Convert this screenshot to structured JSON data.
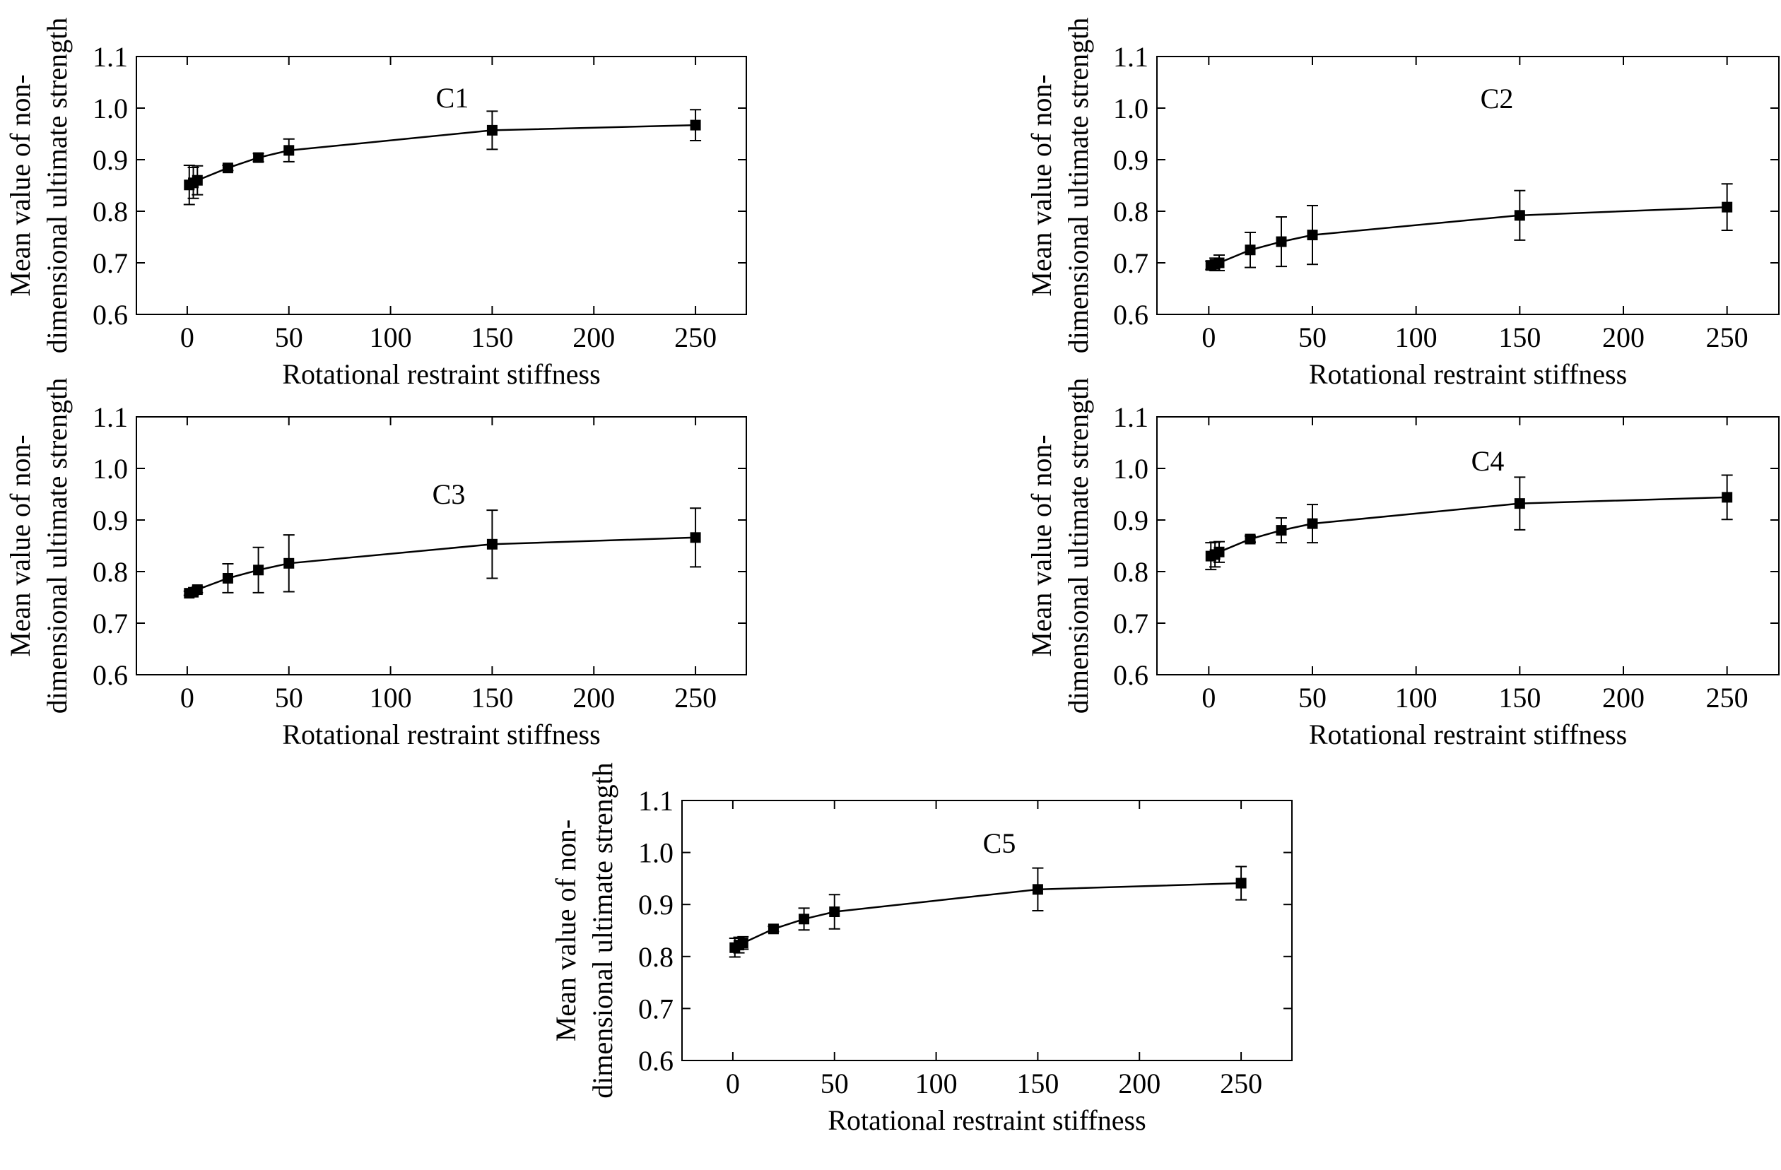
{
  "figure": {
    "axis_style": {
      "line_color": "#000000",
      "marker_color": "#000000",
      "background": "#ffffff"
    }
  },
  "chart_data": [
    {
      "type": "line",
      "annotation": "C1",
      "xlabel": "Rotational restraint stiffness",
      "ylabel_lines": [
        "Mean value of non-",
        "dimensional ultimate strength"
      ],
      "xlim": [
        -25,
        275
      ],
      "ylim": [
        0.6,
        1.1
      ],
      "xticks": [
        0,
        50,
        100,
        150,
        200,
        250
      ],
      "yticks": [
        0.6,
        0.7,
        0.8,
        0.9,
        1.0,
        1.1
      ],
      "grid": false,
      "series": [
        {
          "x": [
            1,
            3,
            5,
            20,
            35,
            50,
            150,
            250
          ],
          "y": [
            0.851,
            0.855,
            0.86,
            0.884,
            0.904,
            0.918,
            0.957,
            0.967
          ],
          "err": [
            0.038,
            0.03,
            0.028,
            0.005,
            0.008,
            0.022,
            0.037,
            0.03
          ]
        }
      ]
    },
    {
      "type": "line",
      "annotation": "C2",
      "xlabel": "Rotational restraint stiffness",
      "ylabel_lines": [
        "Mean value of non-",
        "dimensional ultimate strength"
      ],
      "xlim": [
        -25,
        275
      ],
      "ylim": [
        0.6,
        1.1
      ],
      "xticks": [
        0,
        50,
        100,
        150,
        200,
        250
      ],
      "yticks": [
        0.6,
        0.7,
        0.8,
        0.9,
        1.0,
        1.1
      ],
      "grid": false,
      "series": [
        {
          "x": [
            1,
            3,
            5,
            20,
            35,
            50,
            150,
            250
          ],
          "y": [
            0.695,
            0.697,
            0.7,
            0.725,
            0.741,
            0.754,
            0.792,
            0.808
          ],
          "err": [
            0.008,
            0.012,
            0.015,
            0.034,
            0.048,
            0.057,
            0.048,
            0.045
          ]
        }
      ]
    },
    {
      "type": "line",
      "annotation": "C3",
      "xlabel": "Rotational restraint stiffness",
      "ylabel_lines": [
        "Mean value of non-",
        "dimensional ultimate strength"
      ],
      "xlim": [
        -25,
        275
      ],
      "ylim": [
        0.6,
        1.1
      ],
      "xticks": [
        0,
        50,
        100,
        150,
        200,
        250
      ],
      "yticks": [
        0.6,
        0.7,
        0.8,
        0.9,
        1.0,
        1.1
      ],
      "grid": false,
      "series": [
        {
          "x": [
            1,
            3,
            5,
            20,
            35,
            50,
            150,
            250
          ],
          "y": [
            0.758,
            0.76,
            0.765,
            0.787,
            0.803,
            0.816,
            0.853,
            0.866
          ],
          "err": [
            0.004,
            0.005,
            0.006,
            0.028,
            0.044,
            0.055,
            0.066,
            0.057
          ]
        }
      ]
    },
    {
      "type": "line",
      "annotation": "C4",
      "xlabel": "Rotational restraint stiffness",
      "ylabel_lines": [
        "Mean value of non-",
        "dimensional ultimate strength"
      ],
      "xlim": [
        -25,
        275
      ],
      "ylim": [
        0.6,
        1.1
      ],
      "xticks": [
        0,
        50,
        100,
        150,
        200,
        250
      ],
      "yticks": [
        0.6,
        0.7,
        0.8,
        0.9,
        1.0,
        1.1
      ],
      "grid": false,
      "series": [
        {
          "x": [
            1,
            3,
            5,
            20,
            35,
            50,
            150,
            250
          ],
          "y": [
            0.83,
            0.833,
            0.838,
            0.863,
            0.88,
            0.893,
            0.932,
            0.944
          ],
          "err": [
            0.026,
            0.024,
            0.02,
            0.006,
            0.024,
            0.037,
            0.051,
            0.043
          ]
        }
      ]
    },
    {
      "type": "line",
      "annotation": "C5",
      "xlabel": "Rotational restraint stiffness",
      "ylabel_lines": [
        "Mean value of non-",
        "dimensional ultimate strength"
      ],
      "xlim": [
        -25,
        275
      ],
      "ylim": [
        0.6,
        1.1
      ],
      "xticks": [
        0,
        50,
        100,
        150,
        200,
        250
      ],
      "yticks": [
        0.6,
        0.7,
        0.8,
        0.9,
        1.0,
        1.1
      ],
      "grid": false,
      "series": [
        {
          "x": [
            1,
            3,
            5,
            20,
            35,
            50,
            150,
            250
          ],
          "y": [
            0.817,
            0.822,
            0.826,
            0.853,
            0.872,
            0.886,
            0.929,
            0.941
          ],
          "err": [
            0.018,
            0.015,
            0.012,
            0.005,
            0.021,
            0.033,
            0.041,
            0.032
          ]
        }
      ]
    }
  ]
}
